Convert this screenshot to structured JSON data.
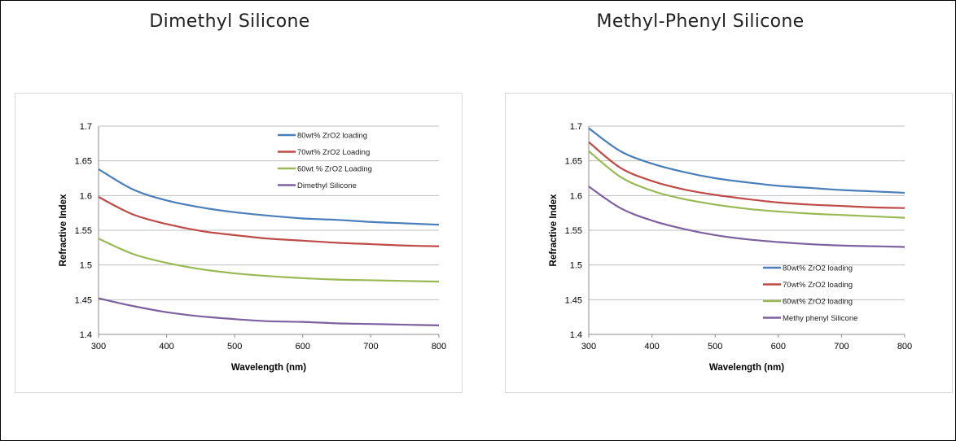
{
  "headings": [
    "Dimethyl Silicone",
    "Methyl-Phenyl Silicone"
  ],
  "chart_data": [
    {
      "type": "line",
      "title": "",
      "xlabel": "Wavelength (nm)",
      "ylabel": "Refractive Index",
      "xlim": [
        300,
        800
      ],
      "ylim": [
        1.4,
        1.7
      ],
      "xticks": [
        "300",
        "400",
        "500",
        "600",
        "700",
        "800"
      ],
      "yticks": [
        "1.4",
        "1.45",
        "1.5",
        "1.55",
        "1.6",
        "1.65",
        "1.7"
      ],
      "grid": "horizontal",
      "legend_position": "top-right",
      "x": [
        300,
        350,
        400,
        450,
        500,
        550,
        600,
        650,
        700,
        750,
        800
      ],
      "series": [
        {
          "name": "80wt% ZrO2 loading",
          "color": "#4a7ebb",
          "values": [
            1.638,
            1.609,
            1.593,
            1.583,
            1.576,
            1.571,
            1.567,
            1.565,
            1.562,
            1.56,
            1.558
          ]
        },
        {
          "name": "70wt% ZrO2 Loading",
          "color": "#be4b48",
          "values": [
            1.598,
            1.573,
            1.559,
            1.549,
            1.543,
            1.538,
            1.535,
            1.532,
            1.53,
            1.528,
            1.527
          ]
        },
        {
          "name": "60wt % ZrO2 Loading",
          "color": "#98b954",
          "values": [
            1.538,
            1.516,
            1.503,
            1.494,
            1.488,
            1.484,
            1.481,
            1.479,
            1.478,
            1.477,
            1.476
          ]
        },
        {
          "name": "Dimethyl Silicone",
          "color": "#7d60a0",
          "values": [
            1.452,
            1.441,
            1.432,
            1.426,
            1.422,
            1.419,
            1.418,
            1.416,
            1.415,
            1.414,
            1.413
          ]
        }
      ]
    },
    {
      "type": "line",
      "title": "",
      "xlabel": "Wavelength (nm)",
      "ylabel": "Refractive Index",
      "xlim": [
        300,
        800
      ],
      "ylim": [
        1.4,
        1.7
      ],
      "xticks": [
        "300",
        "400",
        "500",
        "600",
        "700",
        "800"
      ],
      "yticks": [
        "1.4",
        "1.45",
        "1.5",
        "1.55",
        "1.6",
        "1.65",
        "1.7"
      ],
      "grid": "horizontal",
      "legend_position": "bottom-right",
      "x": [
        300,
        350,
        400,
        450,
        500,
        550,
        600,
        650,
        700,
        750,
        800
      ],
      "series": [
        {
          "name": "80wt% ZrO2 loading",
          "color": "#4a7ebb",
          "values": [
            1.697,
            1.664,
            1.646,
            1.634,
            1.625,
            1.619,
            1.614,
            1.611,
            1.608,
            1.606,
            1.604
          ]
        },
        {
          "name": "70wt% ZrO2 loading",
          "color": "#be4b48",
          "values": [
            1.677,
            1.64,
            1.621,
            1.609,
            1.601,
            1.595,
            1.59,
            1.587,
            1.585,
            1.583,
            1.582
          ]
        },
        {
          "name": "60wt% ZrO2 loading",
          "color": "#98b954",
          "values": [
            1.664,
            1.627,
            1.607,
            1.595,
            1.587,
            1.581,
            1.577,
            1.574,
            1.572,
            1.57,
            1.568
          ]
        },
        {
          "name": "Methy phenyl Silicone",
          "color": "#7d60a0",
          "values": [
            1.613,
            1.582,
            1.564,
            1.552,
            1.543,
            1.537,
            1.533,
            1.53,
            1.528,
            1.527,
            1.526
          ]
        }
      ]
    }
  ]
}
